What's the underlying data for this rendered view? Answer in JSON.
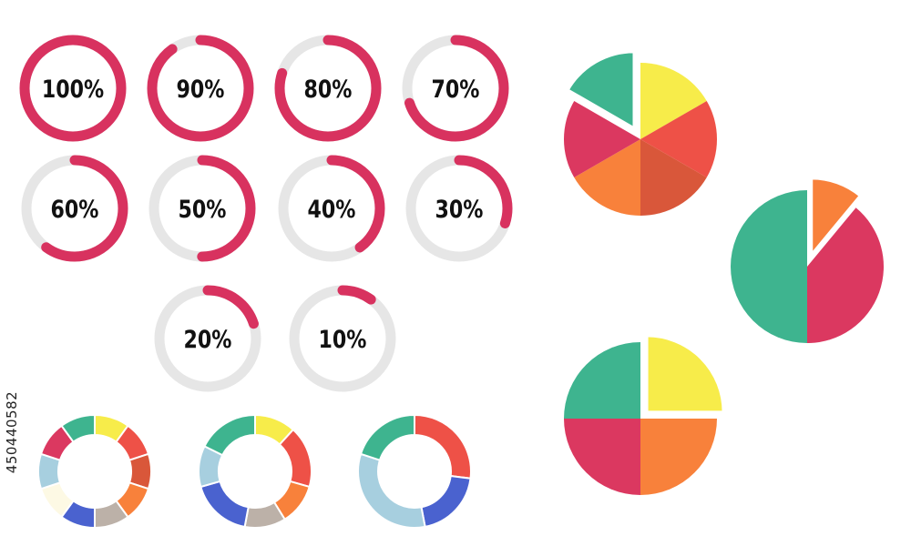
{
  "palette": {
    "accent": "#d8325f",
    "track": "#e6e6e6",
    "label": "#111111",
    "yellow": "#f7ec4a",
    "coral": "#ee5147",
    "burnt": "#d9573a",
    "orange": "#f8813b",
    "taupe": "#bcb1a8",
    "blue": "#4a62cf",
    "cream": "#fdf9e4",
    "sky": "#a7cfdf",
    "crimson": "#db3860",
    "teal": "#3eb48f"
  },
  "stock_id": "450440582",
  "chart_data": [
    {
      "type": "progress-rings",
      "items": [
        {
          "label": "100%",
          "value": 100
        },
        {
          "label": "90%",
          "value": 90
        },
        {
          "label": "80%",
          "value": 80
        },
        {
          "label": "70%",
          "value": 70
        },
        {
          "label": "60%",
          "value": 60
        },
        {
          "label": "50%",
          "value": 50
        },
        {
          "label": "40%",
          "value": 40
        },
        {
          "label": "30%",
          "value": 30
        },
        {
          "label": "20%",
          "value": 20
        },
        {
          "label": "10%",
          "value": 10
        }
      ]
    },
    {
      "type": "donut",
      "slices": [
        {
          "value": 1,
          "color": "yellow"
        },
        {
          "value": 1,
          "color": "coral"
        },
        {
          "value": 1,
          "color": "burnt"
        },
        {
          "value": 1,
          "color": "orange"
        },
        {
          "value": 1,
          "color": "taupe"
        },
        {
          "value": 1,
          "color": "blue"
        },
        {
          "value": 1,
          "color": "cream"
        },
        {
          "value": 1,
          "color": "sky"
        },
        {
          "value": 1,
          "color": "crimson"
        },
        {
          "value": 1,
          "color": "teal"
        }
      ]
    },
    {
      "type": "donut",
      "slices": [
        {
          "value": 1,
          "color": "yellow"
        },
        {
          "value": 1.5,
          "color": "coral"
        },
        {
          "value": 1,
          "color": "orange"
        },
        {
          "value": 1,
          "color": "taupe"
        },
        {
          "value": 1.5,
          "color": "blue"
        },
        {
          "value": 1,
          "color": "sky"
        },
        {
          "value": 1.5,
          "color": "teal"
        }
      ]
    },
    {
      "type": "donut",
      "slices": [
        {
          "value": 2.7,
          "color": "coral"
        },
        {
          "value": 2,
          "color": "blue"
        },
        {
          "value": 3.3,
          "color": "sky"
        },
        {
          "value": 2,
          "color": "teal"
        }
      ]
    },
    {
      "type": "pie",
      "slices": [
        {
          "value": 1,
          "color": "yellow",
          "exploded": false
        },
        {
          "value": 1,
          "color": "coral",
          "exploded": false
        },
        {
          "value": 1,
          "color": "burnt",
          "exploded": false
        },
        {
          "value": 1,
          "color": "orange",
          "exploded": false
        },
        {
          "value": 1,
          "color": "crimson",
          "exploded": false
        },
        {
          "value": 1,
          "color": "teal",
          "exploded": true
        }
      ]
    },
    {
      "type": "pie",
      "slices": [
        {
          "value": 11,
          "color": "orange",
          "exploded": true
        },
        {
          "value": 39,
          "color": "crimson",
          "exploded": false
        },
        {
          "value": 50,
          "color": "teal",
          "exploded": false
        }
      ]
    },
    {
      "type": "pie",
      "slices": [
        {
          "value": 25,
          "color": "yellow",
          "exploded": true
        },
        {
          "value": 25,
          "color": "orange",
          "exploded": false
        },
        {
          "value": 25,
          "color": "crimson",
          "exploded": false
        },
        {
          "value": 25,
          "color": "teal",
          "exploded": false
        }
      ]
    }
  ]
}
